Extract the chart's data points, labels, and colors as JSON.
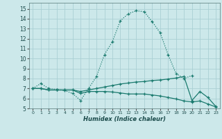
{
  "xlabel": "Humidex (Indice chaleur)",
  "background_color": "#cce8ea",
  "grid_color": "#aad0d4",
  "line_color": "#1a7a6e",
  "xlim": [
    -0.5,
    23.5
  ],
  "ylim": [
    5,
    15.6
  ],
  "xticks": [
    0,
    1,
    2,
    3,
    4,
    5,
    6,
    7,
    8,
    9,
    10,
    11,
    12,
    13,
    14,
    15,
    16,
    17,
    18,
    19,
    20,
    21,
    22,
    23
  ],
  "yticks": [
    5,
    6,
    7,
    8,
    9,
    10,
    11,
    12,
    13,
    14,
    15
  ],
  "series": [
    {
      "x": [
        0,
        1,
        2,
        3,
        4,
        5,
        6,
        7,
        8,
        9,
        10,
        11,
        12,
        13,
        14,
        15,
        16,
        17,
        18,
        19,
        20
      ],
      "y": [
        7.0,
        7.5,
        7.0,
        6.9,
        6.8,
        6.5,
        5.8,
        7.0,
        8.2,
        10.4,
        11.7,
        13.8,
        14.5,
        14.8,
        14.7,
        13.7,
        12.6,
        10.4,
        8.5,
        8.0,
        8.3
      ],
      "linestyle": "dotted",
      "marker": "+"
    },
    {
      "x": [
        0,
        1,
        2,
        3,
        4,
        5,
        6,
        7,
        8,
        9,
        10,
        11,
        12,
        13,
        14,
        15,
        16,
        17,
        18,
        19,
        20,
        21,
        22,
        23
      ],
      "y": [
        7.0,
        7.0,
        6.85,
        6.85,
        6.85,
        6.85,
        6.7,
        6.85,
        7.0,
        7.15,
        7.3,
        7.45,
        7.55,
        7.65,
        7.7,
        7.8,
        7.85,
        7.95,
        8.05,
        8.2,
        5.8,
        6.7,
        6.1,
        5.2
      ],
      "linestyle": "solid",
      "marker": "+"
    },
    {
      "x": [
        0,
        1,
        2,
        3,
        4,
        5,
        6,
        7,
        8,
        9,
        10,
        11,
        12,
        13,
        14,
        15,
        16,
        17,
        18,
        19,
        20,
        21,
        22,
        23
      ],
      "y": [
        7.0,
        7.0,
        6.85,
        6.85,
        6.85,
        6.85,
        6.5,
        6.7,
        6.7,
        6.7,
        6.65,
        6.55,
        6.45,
        6.45,
        6.45,
        6.35,
        6.25,
        6.1,
        5.95,
        5.75,
        5.65,
        5.75,
        5.45,
        5.15
      ],
      "linestyle": "solid",
      "marker": "+"
    }
  ]
}
